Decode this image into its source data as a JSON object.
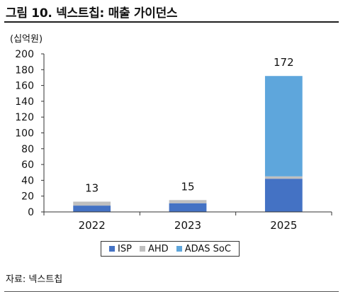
{
  "header": {
    "title": "그림 10. 넥스트칩: 매출 가이던스",
    "unit_label": "(십억원)"
  },
  "footer": {
    "source": "자료: 넥스트칩"
  },
  "colors": {
    "ISP": "#4472c4",
    "AHD": "#bfbfbf",
    "ADAS SoC": "#5ea6dc"
  },
  "chart_data": {
    "type": "bar",
    "stacked": true,
    "categories": [
      "2022",
      "2023",
      "2025"
    ],
    "series": [
      {
        "name": "ISP",
        "values": [
          8,
          11,
          42
        ]
      },
      {
        "name": "AHD",
        "values": [
          5,
          4,
          3
        ]
      },
      {
        "name": "ADAS SoC",
        "values": [
          0,
          0,
          127
        ]
      }
    ],
    "totals": [
      13,
      15,
      172
    ],
    "total_labels": [
      "13",
      "15",
      "172"
    ],
    "ylim": [
      0,
      200
    ],
    "yticks": [
      0,
      20,
      40,
      60,
      80,
      100,
      120,
      140,
      160,
      180,
      200
    ],
    "ytick_labels": [
      "0",
      "20",
      "40",
      "60",
      "80",
      "100",
      "120",
      "140",
      "160",
      "180",
      "200"
    ],
    "grid": false,
    "legend_position": "bottom"
  }
}
